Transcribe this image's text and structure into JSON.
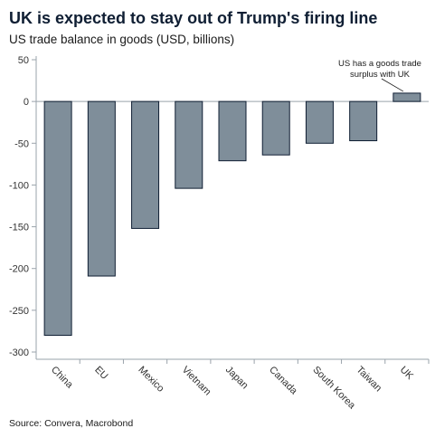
{
  "chart_data": {
    "type": "bar",
    "title": "UK is expected to stay out of Trump's firing line",
    "subtitle": "US trade balance in goods (USD, billions)",
    "categories": [
      "China",
      "EU",
      "Mexico",
      "Vietnam",
      "Japan",
      "Canada",
      "South Korea",
      "Taiwan",
      "UK"
    ],
    "values": [
      -280,
      -209,
      -152,
      -104,
      -71,
      -64,
      -50,
      -47,
      10
    ],
    "ylim": [
      -300,
      50
    ],
    "yticks": [
      50,
      0,
      -50,
      -100,
      -150,
      -200,
      -250,
      -300
    ],
    "annotation": {
      "lines": [
        "US has a goods trade",
        "surplus with UK"
      ],
      "category": "UK"
    },
    "source": "Source: Convera, Macrobond",
    "colors": {
      "bar_fill": "#7f8e9a",
      "bar_stroke": "#0f1e33",
      "axis": "#9aa3ab",
      "title": "#0f1e33"
    },
    "grid": false,
    "legend": "none"
  }
}
